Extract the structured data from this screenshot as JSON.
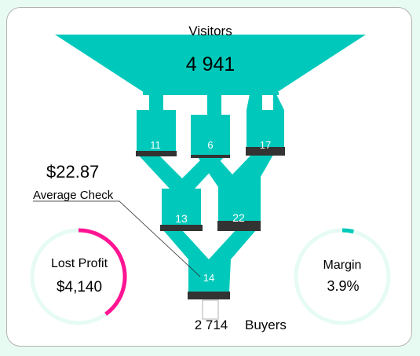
{
  "funnel": {
    "top_label": "Visitors",
    "top_value": "4 941",
    "bottom_value": "2 714",
    "bottom_label": "Buyers",
    "stages": [
      {
        "id": "s1",
        "value": "11"
      },
      {
        "id": "s2",
        "value": "6"
      },
      {
        "id": "s3",
        "value": "17"
      },
      {
        "id": "s4",
        "value": "13"
      },
      {
        "id": "s5",
        "value": "22"
      },
      {
        "id": "s6",
        "value": "14"
      }
    ]
  },
  "average_check": {
    "value": "$22.87",
    "label": "Average Check"
  },
  "lost_profit": {
    "label": "Lost Profit",
    "value": "$4,140",
    "fraction": 0.4
  },
  "margin": {
    "label": "Margin",
    "value": "3.9%",
    "fraction": 0.039
  },
  "colors": {
    "funnel": "#00c9bb",
    "bar": "#333333",
    "ring_track": "#e6fbf4",
    "lost_profit_arc": "#ff1493",
    "margin_arc": "#00c9bb",
    "background": "#e8fbf3"
  }
}
